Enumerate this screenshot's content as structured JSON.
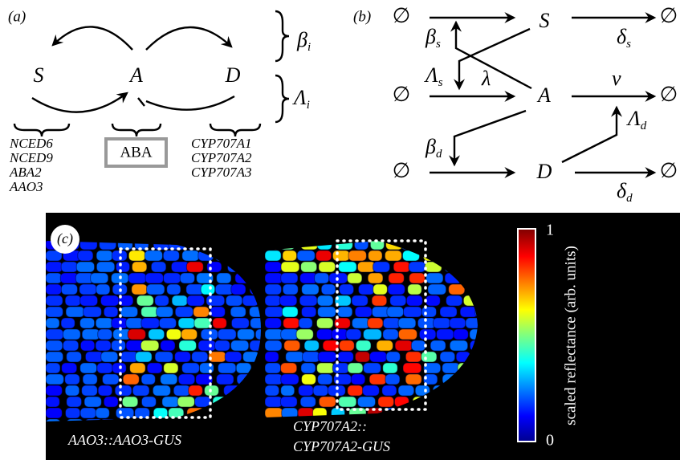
{
  "panel_a": {
    "tag": "(a)",
    "nodes": [
      "S",
      "A",
      "D"
    ],
    "brace_labels": [
      {
        "symbol": "β",
        "sub": "i"
      },
      {
        "symbol": "Λ",
        "sub": "i"
      }
    ],
    "synthesis_genes": [
      "NCED6",
      "NCED9",
      "ABA2",
      "AAO3"
    ],
    "hormone": "ABA",
    "degradation_genes": [
      "CYP707A1",
      "CYP707A2",
      "CYP707A3"
    ]
  },
  "panel_b": {
    "tag": "(b)",
    "sources": [
      "∅",
      "∅",
      "∅"
    ],
    "sinks": [
      "∅",
      "∅",
      "∅"
    ],
    "nodes": [
      "S",
      "A",
      "D"
    ],
    "rates": {
      "beta_s": {
        "symbol": "β",
        "sub": "s"
      },
      "lambda_s": {
        "symbol": "Λ",
        "sub": "s"
      },
      "lambda": "λ",
      "nu": "ν",
      "delta_s": {
        "symbol": "δ",
        "sub": "s"
      },
      "lambda_d": {
        "symbol": "Λ",
        "sub": "d"
      },
      "beta_d": {
        "symbol": "β",
        "sub": "d"
      },
      "delta_d": {
        "symbol": "δ",
        "sub": "d"
      }
    }
  },
  "panel_c": {
    "tag": "(c)",
    "left_caption": "AAO3::AAO3-GUS",
    "right_caption": [
      "CYP707A2::",
      "CYP707A2-GUS"
    ],
    "colorbar": {
      "label": "scaled reflectance (arb. units)",
      "max": 1,
      "min": 0
    }
  }
}
